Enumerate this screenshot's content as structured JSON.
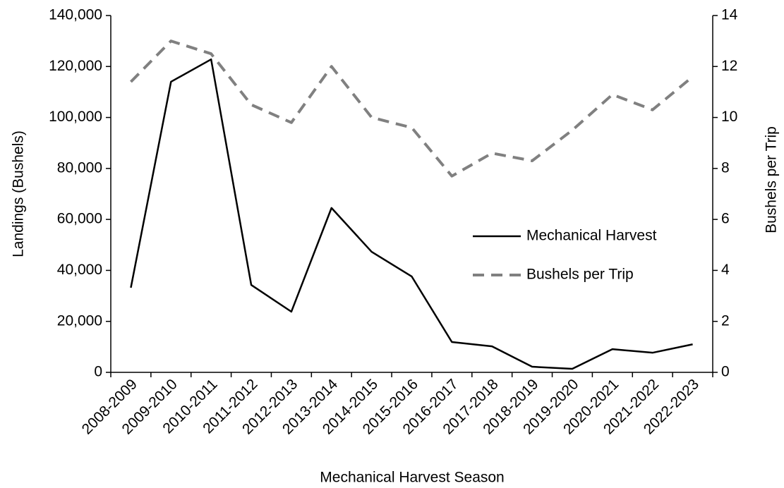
{
  "chart_data": {
    "type": "line",
    "x_label": "Mechanical Harvest Season",
    "y_label": "Landings (Bushels)",
    "y2_label": "Bushels per Trip",
    "categories": [
      "2008-2009",
      "2009-2010",
      "2010-2011",
      "2011-2012",
      "2012-2013",
      "2013-2014",
      "2014-2015",
      "2015-2016",
      "2016-2017",
      "2017-2018",
      "2018-2019",
      "2019-2020",
      "2020-2021",
      "2021-2022",
      "2022-2023"
    ],
    "series": [
      {
        "name": "Mechanical Harvest",
        "color": "#000000",
        "dash": "solid",
        "axis": "y",
        "values": [
          33200,
          114000,
          122800,
          34300,
          23800,
          64500,
          47300,
          37600,
          11900,
          10200,
          2200,
          1400,
          9100,
          7700,
          11000
        ]
      },
      {
        "name": "Bushels per Trip",
        "color": "#808080",
        "dash": "dashed",
        "axis": "y2",
        "values": [
          11.4,
          13.0,
          12.5,
          10.5,
          9.8,
          12.0,
          10.0,
          9.6,
          7.7,
          8.6,
          8.3,
          9.5,
          10.9,
          10.3,
          11.6
        ]
      }
    ],
    "ylim": [
      0,
      140000
    ],
    "yticks": [
      0,
      {
        "value": 20000,
        "label": "20,000"
      },
      {
        "value": 40000,
        "label": "40,000"
      },
      {
        "value": 60000,
        "label": "60,000"
      },
      {
        "value": 80000,
        "label": "80,000"
      },
      {
        "value": 100000,
        "label": "100,000"
      },
      {
        "value": 120000,
        "label": "120,000"
      },
      {
        "value": 140000,
        "label": "140,000"
      }
    ],
    "y2lim": [
      0,
      14
    ],
    "y2ticks": [
      0,
      2,
      4,
      6,
      8,
      10,
      12,
      14
    ],
    "grid": false,
    "legend": "right"
  }
}
